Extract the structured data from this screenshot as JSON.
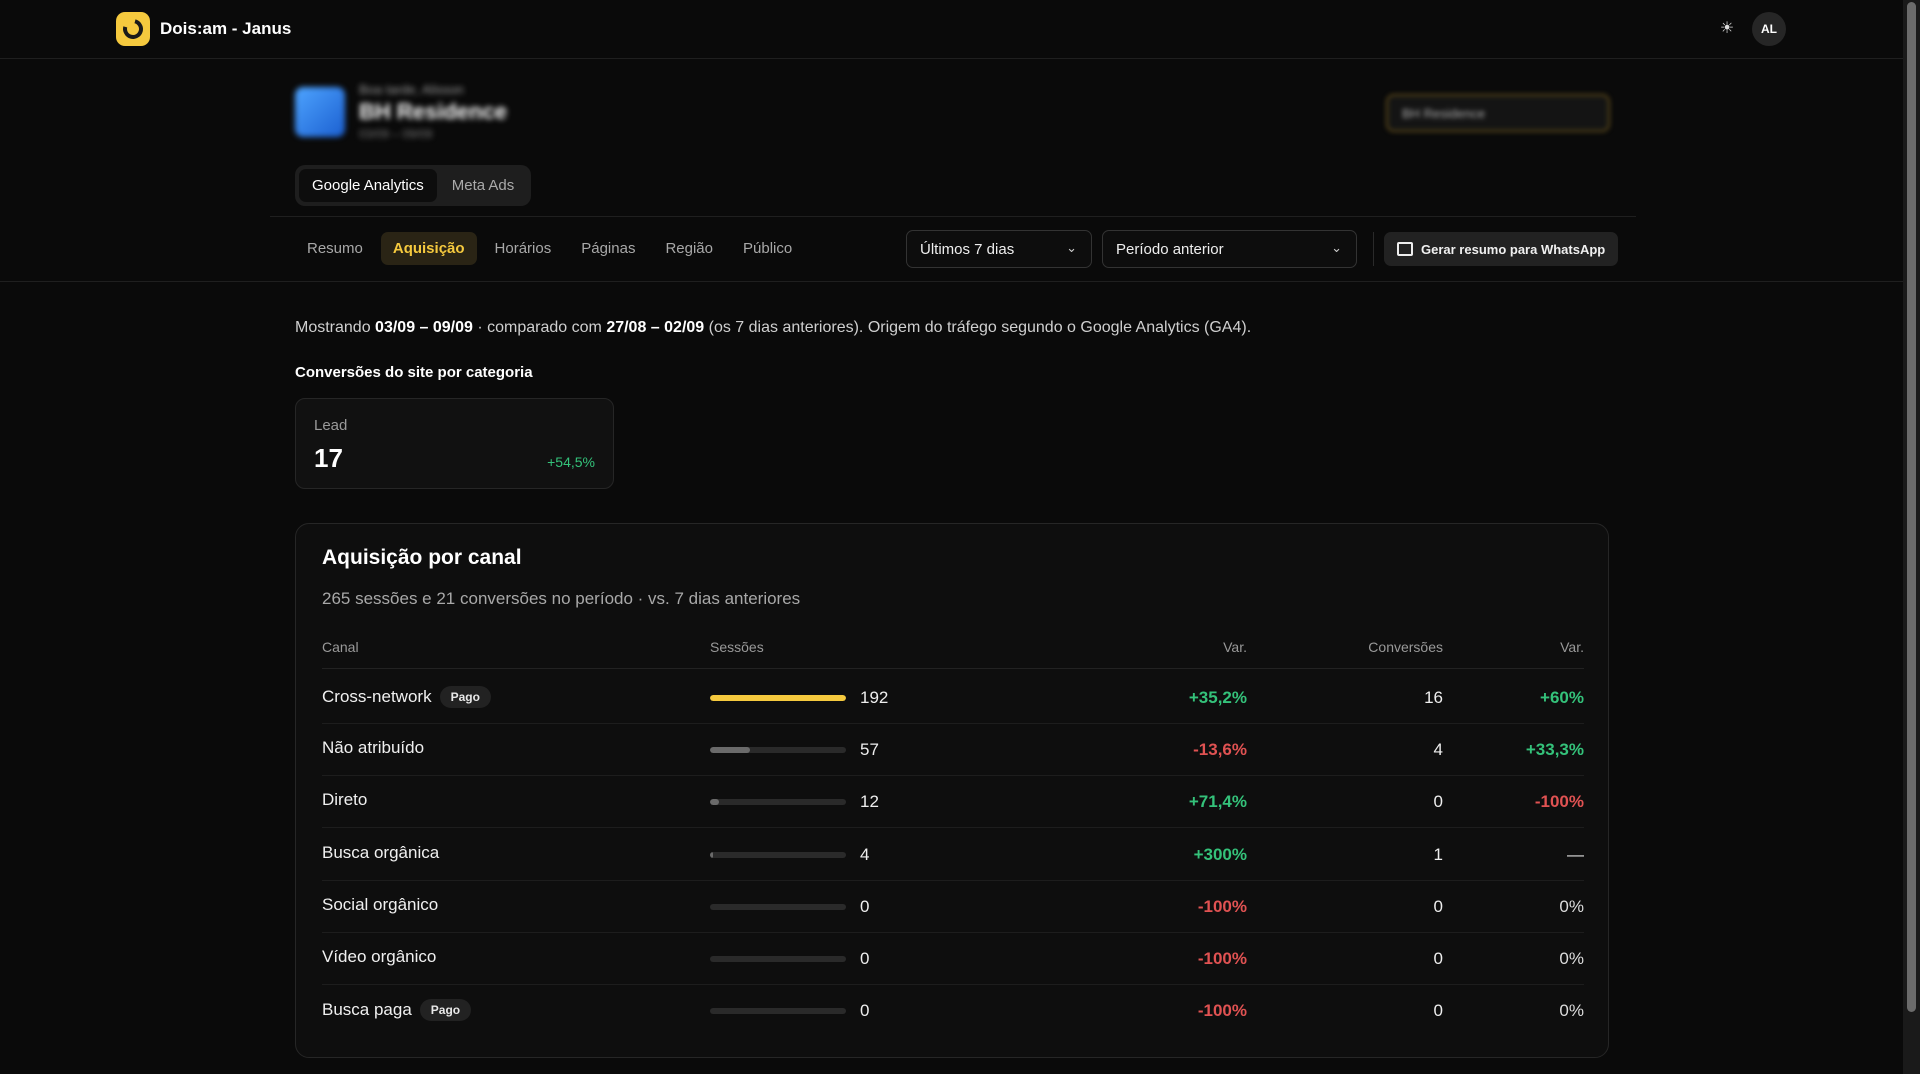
{
  "app": {
    "title": "Dois:am - Janus",
    "user_initials": "AL",
    "theme_icon": "sun-icon"
  },
  "client": {
    "greeting": "Boa tarde, Alisson",
    "name": "BH Residence",
    "subtitle": "03/09 – 09/09",
    "selector_value": "BH Residence"
  },
  "source_tabs": [
    {
      "label": "Google Analytics",
      "active": true
    },
    {
      "label": "Meta Ads",
      "active": false
    }
  ],
  "subnav": [
    {
      "label": "Resumo",
      "active": false
    },
    {
      "label": "Aquisição",
      "active": true
    },
    {
      "label": "Horários",
      "active": false
    },
    {
      "label": "Páginas",
      "active": false
    },
    {
      "label": "Região",
      "active": false
    },
    {
      "label": "Público",
      "active": false
    }
  ],
  "filters": {
    "period": "Últimos 7 dias",
    "compare": "Período anterior",
    "whatsapp_label": "Gerar resumo para WhatsApp"
  },
  "summary": {
    "prefix": "Mostrando ",
    "current": "03/09 – 09/09",
    "middle": " · comparado com ",
    "previous": "27/08 – 02/09",
    "suffix": " (os 7 dias anteriores). Origem do tráfego segundo o Google Analytics (GA4)."
  },
  "conversions": {
    "title": "Conversões do site por categoria",
    "lead": {
      "label": "Lead",
      "value": "17",
      "delta": "+54,5%"
    }
  },
  "acquisition": {
    "title": "Aquisição por canal",
    "subtitle": "265 sessões e 21 conversões no período · vs. 7 dias anteriores",
    "headers": {
      "canal": "Canal",
      "sessoes": "Sessões",
      "var": "Var.",
      "conversoes": "Conversões",
      "var2": "Var."
    },
    "accent": "#f5c93e",
    "rows": [
      {
        "canal": "Cross-network",
        "badge": "Pago",
        "sessions": "192",
        "share": 1.0,
        "bar_color": "#f5c93e",
        "var": "+35,2%",
        "var_tone": "pos",
        "conv": "16",
        "conv_var": "+60%",
        "conv_tone": "pos"
      },
      {
        "canal": "Não atribuído",
        "badge": "",
        "sessions": "57",
        "share": 0.297,
        "bar_color": "#6a6a6a",
        "var": "-13,6%",
        "var_tone": "neg",
        "conv": "4",
        "conv_var": "+33,3%",
        "conv_tone": "pos"
      },
      {
        "canal": "Direto",
        "badge": "",
        "sessions": "12",
        "share": 0.0625,
        "bar_color": "#6a6a6a",
        "var": "+71,4%",
        "var_tone": "pos",
        "conv": "0",
        "conv_var": "-100%",
        "conv_tone": "neg"
      },
      {
        "canal": "Busca orgânica",
        "badge": "",
        "sessions": "4",
        "share": 0.02,
        "bar_color": "#6a6a6a",
        "var": "+300%",
        "var_tone": "pos",
        "conv": "1",
        "conv_var": "—",
        "conv_tone": "neu"
      },
      {
        "canal": "Social orgânico",
        "badge": "",
        "sessions": "0",
        "share": 0,
        "bar_color": "#6a6a6a",
        "var": "-100%",
        "var_tone": "neg",
        "conv": "0",
        "conv_var": "0%",
        "conv_tone": "neu"
      },
      {
        "canal": "Vídeo orgânico",
        "badge": "",
        "sessions": "0",
        "share": 0,
        "bar_color": "#6a6a6a",
        "var": "-100%",
        "var_tone": "neg",
        "conv": "0",
        "conv_var": "0%",
        "conv_tone": "neu"
      },
      {
        "canal": "Busca paga",
        "badge": "Pago",
        "sessions": "0",
        "share": 0,
        "bar_color": "#6a6a6a",
        "var": "-100%",
        "var_tone": "neg",
        "conv": "0",
        "conv_var": "0%",
        "conv_tone": "neu"
      }
    ]
  }
}
